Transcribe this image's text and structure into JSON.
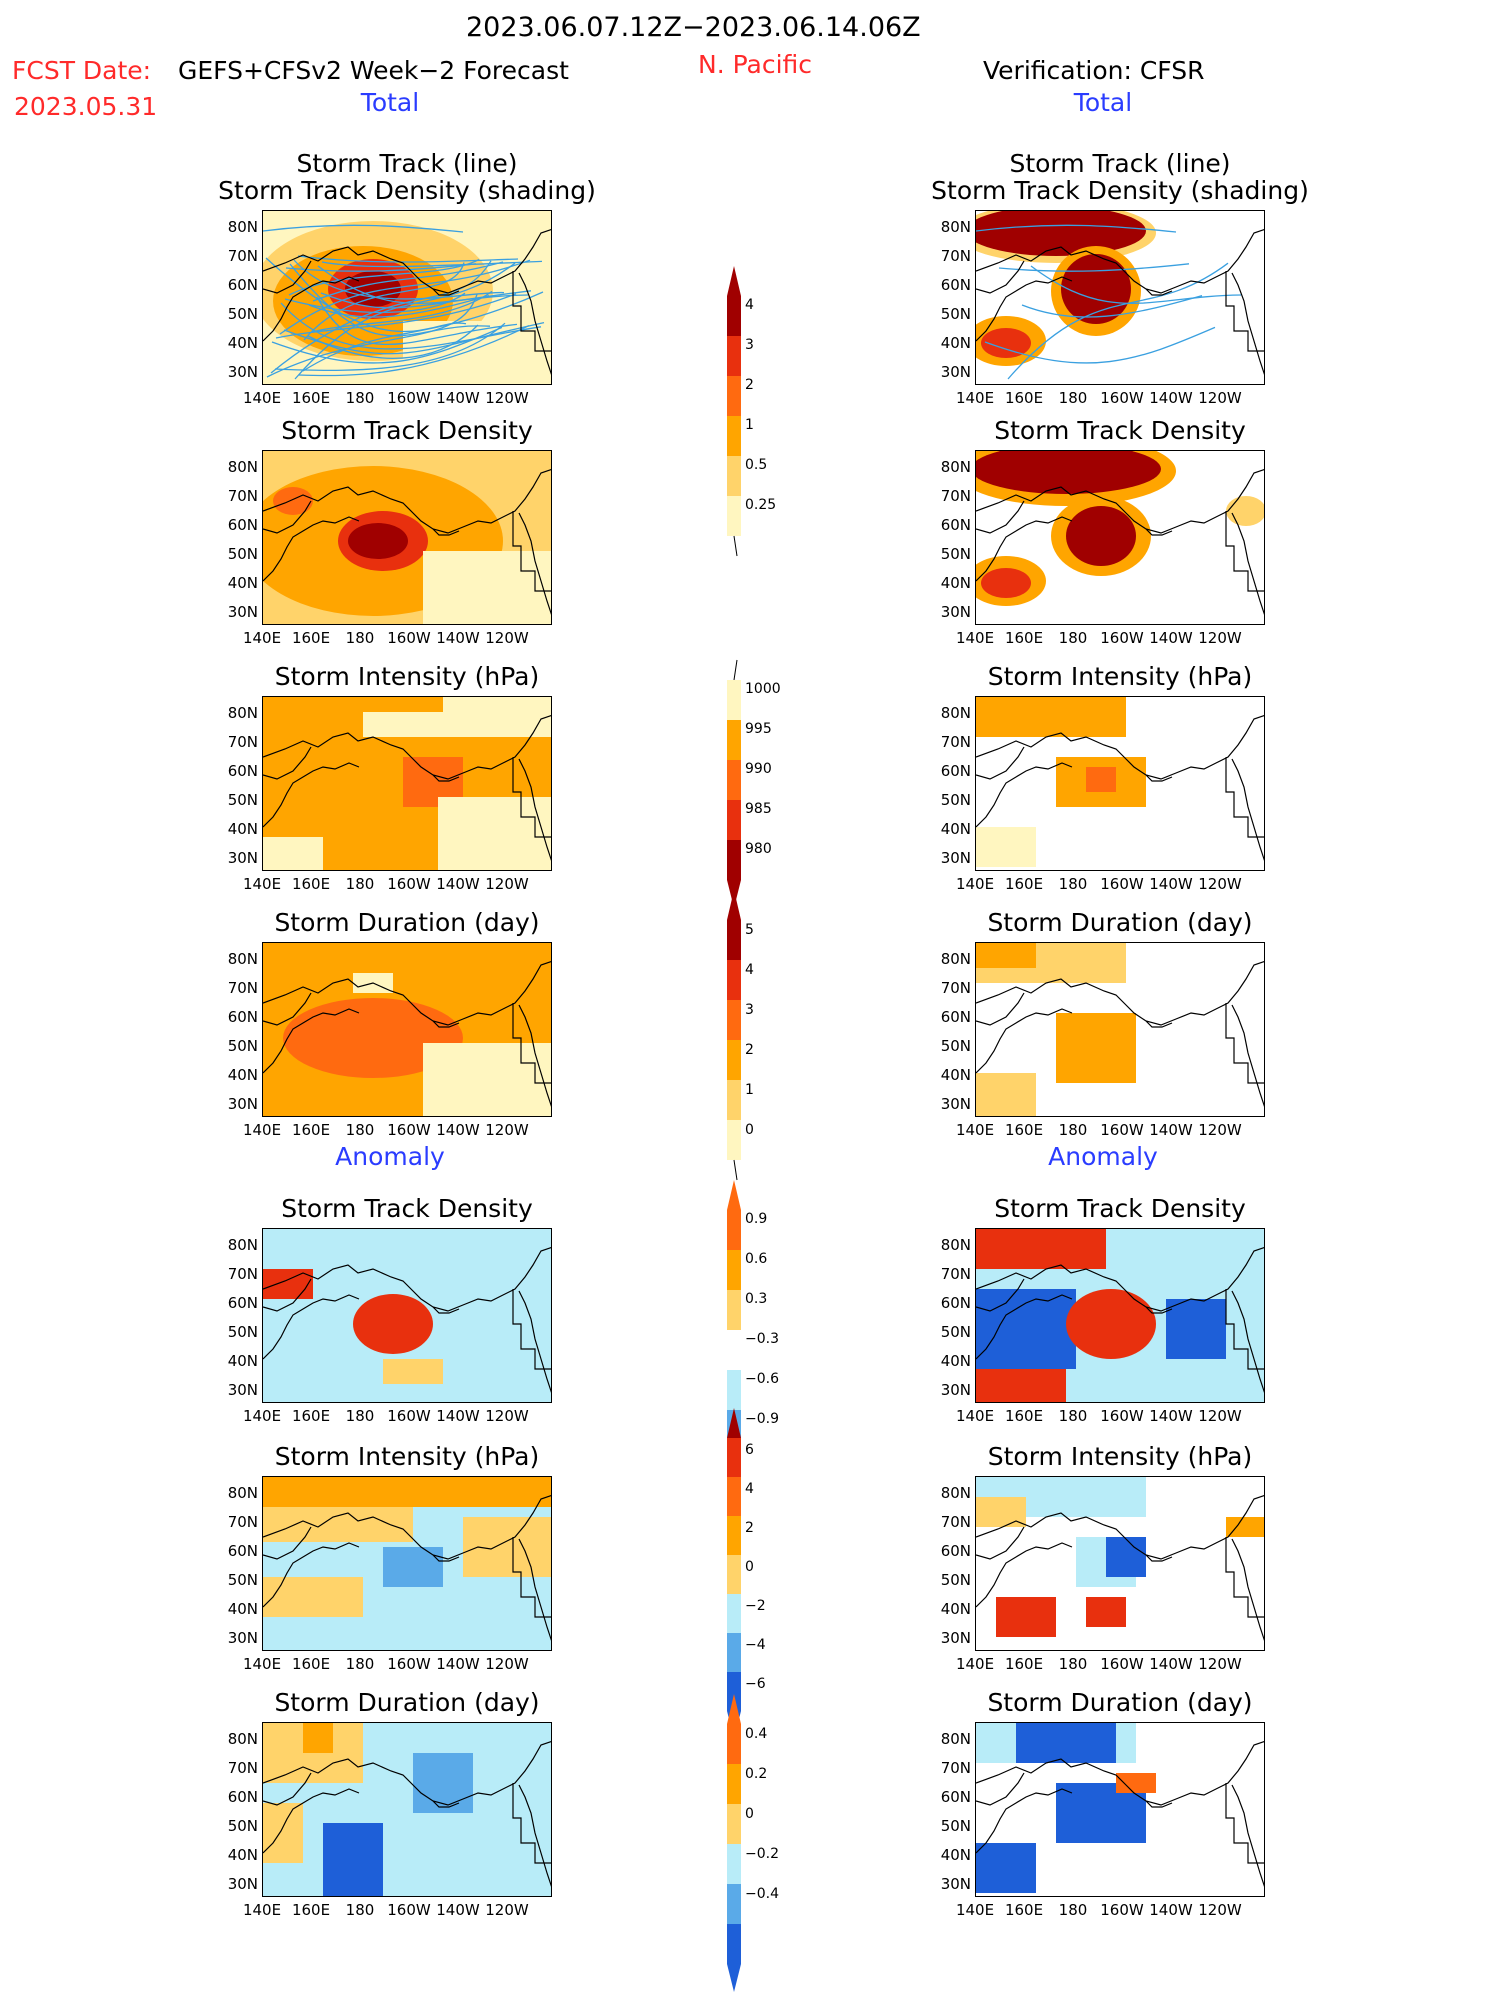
{
  "header": {
    "date_range": "2023.06.07.12Z−2023.06.14.06Z",
    "fcst_label": "FCST Date:",
    "fcst_date": "2023.05.31",
    "model": "GEFS+CFSv2 Week−2 Forecast",
    "region": "N. Pacific",
    "verification": "Verification: CFSR",
    "left_section": "Total",
    "right_section": "Total",
    "left_anom": "Anomaly",
    "right_anom": "Anomaly"
  },
  "panel_titles": {
    "track_line": "Storm Track (line)",
    "track_shade": "Storm Track Density (shading)",
    "density": "Storm Track Density",
    "intensity": "Storm Intensity (hPa)",
    "duration": "Storm Duration (day)"
  },
  "axes": {
    "lat": [
      "80N",
      "70N",
      "60N",
      "50N",
      "40N",
      "30N"
    ],
    "lon": [
      "140E",
      "160E",
      "180",
      "160W",
      "140W",
      "120W"
    ]
  },
  "colors": {
    "pale_yellow": "#fff6c0",
    "light_orange": "#ffd36a",
    "orange": "#ffa500",
    "dark_orange": "#ff6a10",
    "red": "#e8300e",
    "dark_red": "#a00000",
    "light_blue": "#b8ecf8",
    "mid_blue": "#5aaae8",
    "blue": "#1e5fd8",
    "track_line": "#3aa0e0"
  },
  "colorbars": {
    "density": {
      "labels": [
        "4",
        "3",
        "2",
        "1",
        "0.5",
        "0.25"
      ]
    },
    "intensity": {
      "labels": [
        "1000",
        "995",
        "990",
        "985",
        "980"
      ]
    },
    "duration": {
      "labels": [
        "5",
        "4",
        "3",
        "2",
        "1",
        "0"
      ]
    },
    "anom_density": {
      "labels": [
        "0.9",
        "0.6",
        "0.3",
        "−0.3",
        "−0.6",
        "−0.9"
      ]
    },
    "anom_intensity": {
      "labels": [
        "6",
        "4",
        "2",
        "0",
        "−2",
        "−4",
        "−6"
      ]
    },
    "anom_duration": {
      "labels": [
        "0.4",
        "0.2",
        "0",
        "−0.2",
        "−0.4"
      ]
    }
  },
  "chart_data": [
    {
      "type": "heatmap",
      "panel": "forecast-total-track",
      "title": "Storm Track (line) Storm Track Density (shading)",
      "colorbar": [
        0.25,
        0.5,
        1,
        2,
        3,
        4
      ]
    },
    {
      "type": "heatmap",
      "panel": "forecast-total-density",
      "title": "Storm Track Density",
      "colorbar": [
        0.25,
        0.5,
        1,
        2,
        3,
        4
      ]
    },
    {
      "type": "heatmap",
      "panel": "forecast-total-intensity",
      "title": "Storm Intensity (hPa)",
      "colorbar": [
        1000,
        995,
        990,
        985,
        980
      ]
    },
    {
      "type": "heatmap",
      "panel": "forecast-total-duration",
      "title": "Storm Duration (day)",
      "colorbar": [
        0,
        1,
        2,
        3,
        4,
        5
      ]
    },
    {
      "type": "heatmap",
      "panel": "forecast-anomaly-density",
      "title": "Storm Track Density",
      "colorbar": [
        -0.9,
        -0.6,
        -0.3,
        0.3,
        0.6,
        0.9
      ]
    },
    {
      "type": "heatmap",
      "panel": "forecast-anomaly-intensity",
      "title": "Storm Intensity (hPa)",
      "colorbar": [
        -6,
        -4,
        -2,
        0,
        2,
        4,
        6
      ]
    },
    {
      "type": "heatmap",
      "panel": "forecast-anomaly-duration",
      "title": "Storm Duration (day)",
      "colorbar": [
        -0.4,
        -0.2,
        0,
        0.2,
        0.4
      ]
    },
    {
      "type": "heatmap",
      "panel": "cfsr-total-track",
      "title": "Storm Track (line) Storm Track Density (shading)"
    },
    {
      "type": "heatmap",
      "panel": "cfsr-total-density",
      "title": "Storm Track Density"
    },
    {
      "type": "heatmap",
      "panel": "cfsr-total-intensity",
      "title": "Storm Intensity (hPa)"
    },
    {
      "type": "heatmap",
      "panel": "cfsr-total-duration",
      "title": "Storm Duration (day)"
    },
    {
      "type": "heatmap",
      "panel": "cfsr-anomaly-density",
      "title": "Storm Track Density"
    },
    {
      "type": "heatmap",
      "panel": "cfsr-anomaly-intensity",
      "title": "Storm Intensity (hPa)"
    },
    {
      "type": "heatmap",
      "panel": "cfsr-anomaly-duration",
      "title": "Storm Duration (day)"
    }
  ]
}
